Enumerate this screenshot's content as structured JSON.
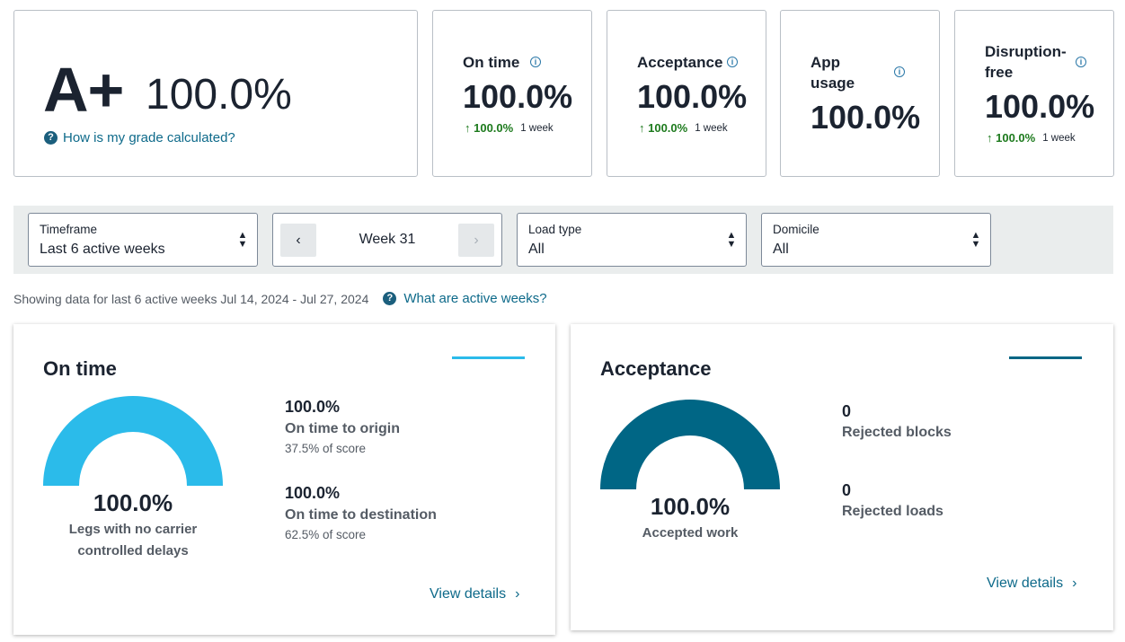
{
  "grade": {
    "letter": "A+",
    "percent": "100.0%",
    "help_link": "How is my grade calculated?"
  },
  "metrics": [
    {
      "title": "On time",
      "value": "100.0%",
      "trend": "↑ 100.0%",
      "period": "1 week"
    },
    {
      "title": "Acceptance",
      "value": "100.0%",
      "trend": "↑ 100.0%",
      "period": "1 week"
    },
    {
      "title_line1": "App",
      "title_line2": "usage",
      "value": "100.0%"
    },
    {
      "title_line1": "Disruption-",
      "title_line2": "free",
      "value": "100.0%",
      "trend": "↑ 100.0%",
      "period": "1 week"
    }
  ],
  "filters": {
    "timeframe": {
      "label": "Timeframe",
      "value": "Last 6 active weeks"
    },
    "week": {
      "label": "Week 31",
      "prev": "‹",
      "next": "›"
    },
    "load_type": {
      "label": "Load type",
      "value": "All"
    },
    "domicile": {
      "label": "Domicile",
      "value": "All"
    }
  },
  "info": {
    "text": "Showing data for last 6 active weeks Jul 14, 2024 - Jul 27, 2024",
    "link": "What are active weeks?"
  },
  "on_time_panel": {
    "title": "On time",
    "gauge_fraction": 1.0,
    "gauge_color": "#2bbbea",
    "gauge_value": "100.0%",
    "gauge_label_line1": "Legs with no carrier",
    "gauge_label_line2": "controlled delays",
    "stats": [
      {
        "value": "100.0%",
        "label": "On time to origin",
        "sub": "37.5% of score"
      },
      {
        "value": "100.0%",
        "label": "On time to destination",
        "sub": "62.5% of score"
      }
    ],
    "view_details": "View details"
  },
  "acceptance_panel": {
    "title": "Acceptance",
    "gauge_fraction": 1.0,
    "gauge_color": "#006685",
    "gauge_value": "100.0%",
    "gauge_label": "Accepted work",
    "stats": [
      {
        "value": "0",
        "label": "Rejected blocks"
      },
      {
        "value": "0",
        "label": "Rejected loads"
      }
    ],
    "view_details": "View details"
  },
  "colors": {
    "link": "#0e6a8a",
    "trend_up": "#1d7a1d",
    "on_time_accent": "#2bbbea",
    "acceptance_accent": "#006685"
  }
}
